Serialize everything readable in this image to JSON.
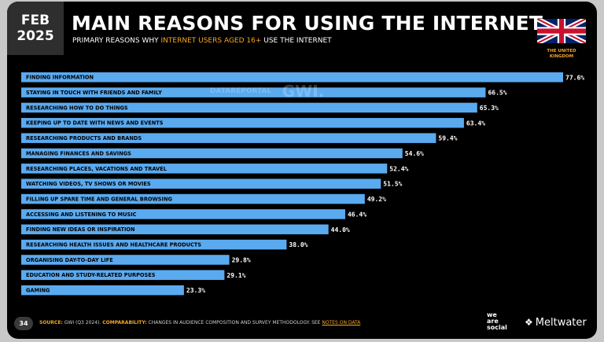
{
  "badge": {
    "month": "FEB",
    "year": "2025"
  },
  "header": {
    "title": "MAIN REASONS FOR USING THE INTERNET",
    "subtitle_pre": "PRIMARY REASONS WHY ",
    "subtitle_highlight": "INTERNET USERS AGED 16+",
    "subtitle_post": " USE THE INTERNET"
  },
  "country": {
    "line1": "THE UNITED",
    "line2": "KINGDOM"
  },
  "watermark": {
    "datareportal": "DATAREPORTAL",
    "gwi": "GWI."
  },
  "colors": {
    "bar": "#5aaaf0",
    "label": "#000000",
    "value": "#ffffff",
    "accent": "#f5a623",
    "background": "#000000"
  },
  "chart_data": {
    "type": "bar",
    "orientation": "horizontal",
    "xlim": [
      0,
      77.6
    ],
    "categories": [
      "FINDING INFORMATION",
      "STAYING IN TOUCH WITH FRIENDS AND FAMILY",
      "RESEARCHING HOW TO DO THINGS",
      "KEEPING UP TO DATE WITH NEWS AND EVENTS",
      "RESEARCHING PRODUCTS AND BRANDS",
      "MANAGING FINANCES AND SAVINGS",
      "RESEARCHING PLACES, VACATIONS AND TRAVEL",
      "WATCHING VIDEOS, TV SHOWS OR MOVIES",
      "FILLING UP SPARE TIME AND GENERAL BROWSING",
      "ACCESSING AND LISTENING TO MUSIC",
      "FINDING NEW IDEAS OR INSPIRATION",
      "RESEARCHING HEALTH ISSUES AND HEALTHCARE PRODUCTS",
      "ORGANISING DAY-TO-DAY LIFE",
      "EDUCATION AND STUDY-RELATED PURPOSES",
      "GAMING"
    ],
    "values": [
      77.6,
      66.5,
      65.3,
      63.4,
      59.4,
      54.6,
      52.4,
      51.5,
      49.2,
      46.4,
      44.0,
      38.0,
      29.8,
      29.1,
      23.3
    ],
    "value_labels": [
      "77.6%",
      "66.5%",
      "65.3%",
      "63.4%",
      "59.4%",
      "54.6%",
      "52.4%",
      "51.5%",
      "49.2%",
      "46.4%",
      "44.0%",
      "38.0%",
      "29.8%",
      "29.1%",
      "23.3%"
    ]
  },
  "footer": {
    "page_number": "34",
    "source_label": "SOURCE:",
    "source_text": " GWI (Q3 2024). ",
    "comparability_label": "COMPARABILITY:",
    "comparability_text": " CHANGES IN AUDIENCE COMPOSITION AND SURVEY METHODOLOGY. SEE ",
    "notes_link": "NOTES ON DATA",
    "wearesocial": [
      "we",
      "are",
      "social"
    ],
    "meltwater": "Meltwater"
  }
}
